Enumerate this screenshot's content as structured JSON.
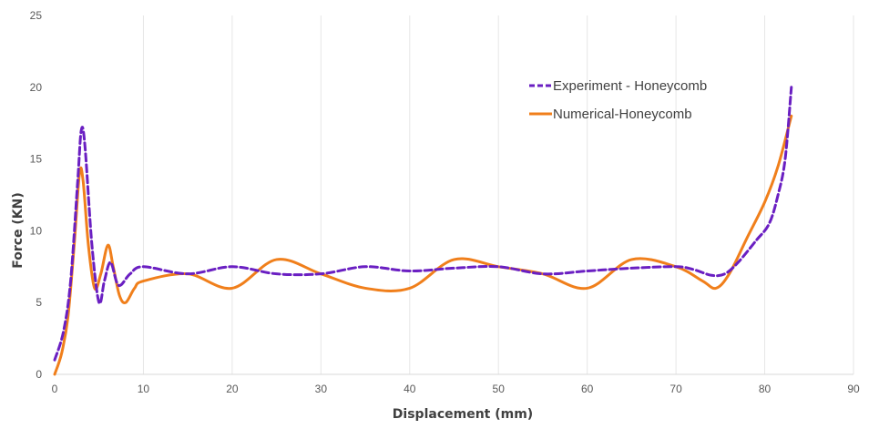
{
  "chart_data": {
    "type": "line",
    "xlabel": "Displacement (mm)",
    "ylabel": "Force (KN)",
    "xlim": [
      0,
      90
    ],
    "ylim": [
      0,
      25
    ],
    "x_ticks": [
      "0",
      "10",
      "20",
      "30",
      "40",
      "50",
      "60",
      "70",
      "80",
      "90"
    ],
    "y_ticks": [
      "0",
      "5",
      "10",
      "15",
      "20",
      "25"
    ],
    "grid": "vertical",
    "legend": "top-right",
    "series": [
      {
        "name": "Experiment - Honeycomb",
        "color": "#6a1fc2",
        "style": "dashed",
        "x": [
          0,
          1,
          1.8,
          2.6,
          3.0,
          3.4,
          4.2,
          5.0,
          5.6,
          6.3,
          7.2,
          8.5,
          10,
          15,
          20,
          25,
          30,
          35,
          40,
          45,
          50,
          55,
          60,
          65,
          70,
          72,
          74,
          75.5,
          77,
          79,
          80.5,
          81.5,
          82.3,
          83
        ],
        "y": [
          1.0,
          3.0,
          6.5,
          13.5,
          17.0,
          16.0,
          9.0,
          5.0,
          6.5,
          7.8,
          6.2,
          7.0,
          7.5,
          7.0,
          7.5,
          7.0,
          7.0,
          7.5,
          7.2,
          7.4,
          7.5,
          7.0,
          7.2,
          7.4,
          7.5,
          7.3,
          6.9,
          7.0,
          7.8,
          9.3,
          10.5,
          12.5,
          15.0,
          20.0
        ]
      },
      {
        "name": "Numerical-Honeycomb",
        "color": "#f07f1b",
        "style": "solid",
        "x": [
          0,
          0.8,
          1.5,
          2.2,
          2.8,
          3.2,
          3.8,
          4.5,
          5.2,
          6.0,
          6.6,
          7.3,
          8.0,
          9.0,
          10,
          15,
          20,
          25,
          30,
          35,
          40,
          45,
          50,
          55,
          60,
          65,
          70,
          73,
          74.5,
          76,
          78,
          80,
          81.5,
          83
        ],
        "y": [
          0,
          1.5,
          4.0,
          9.0,
          14.0,
          13.5,
          9.0,
          6.0,
          7.0,
          9.0,
          7.5,
          5.5,
          5.0,
          6.0,
          6.5,
          7.0,
          6.0,
          8.0,
          7.0,
          6.0,
          6.0,
          8.0,
          7.5,
          7.0,
          6.0,
          8.0,
          7.5,
          6.5,
          6.0,
          7.0,
          9.5,
          12.0,
          14.5,
          18.0
        ]
      }
    ]
  }
}
